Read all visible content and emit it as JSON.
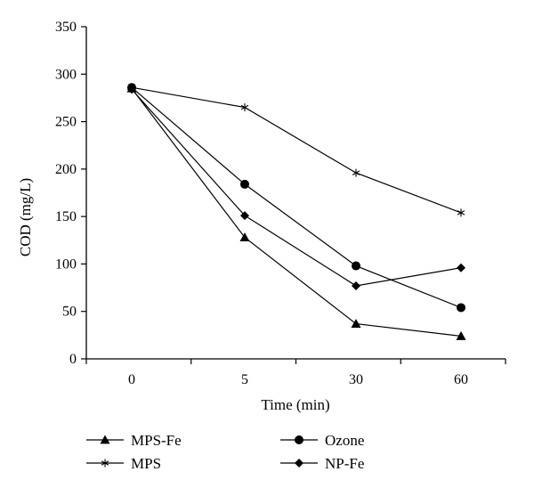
{
  "chart_data": {
    "type": "line",
    "title": "",
    "xlabel": "Time (min)",
    "ylabel": "COD (mg/L)",
    "categories": [
      "0",
      "5",
      "30",
      "60"
    ],
    "ylim": [
      0,
      350
    ],
    "yticks": [
      0,
      50,
      100,
      150,
      200,
      250,
      300,
      350
    ],
    "grid": false,
    "legend_position": "bottom",
    "series": [
      {
        "name": "MPS-Fe",
        "marker": "triangle",
        "values": [
          285,
          128,
          37,
          24
        ]
      },
      {
        "name": "MPS",
        "marker": "asterisk",
        "values": [
          286,
          265,
          196,
          154
        ]
      },
      {
        "name": "Ozone",
        "marker": "circle",
        "values": [
          286,
          184,
          98,
          54
        ]
      },
      {
        "name": "NP-Fe",
        "marker": "diamond",
        "values": [
          284,
          151,
          77,
          96
        ]
      }
    ]
  }
}
